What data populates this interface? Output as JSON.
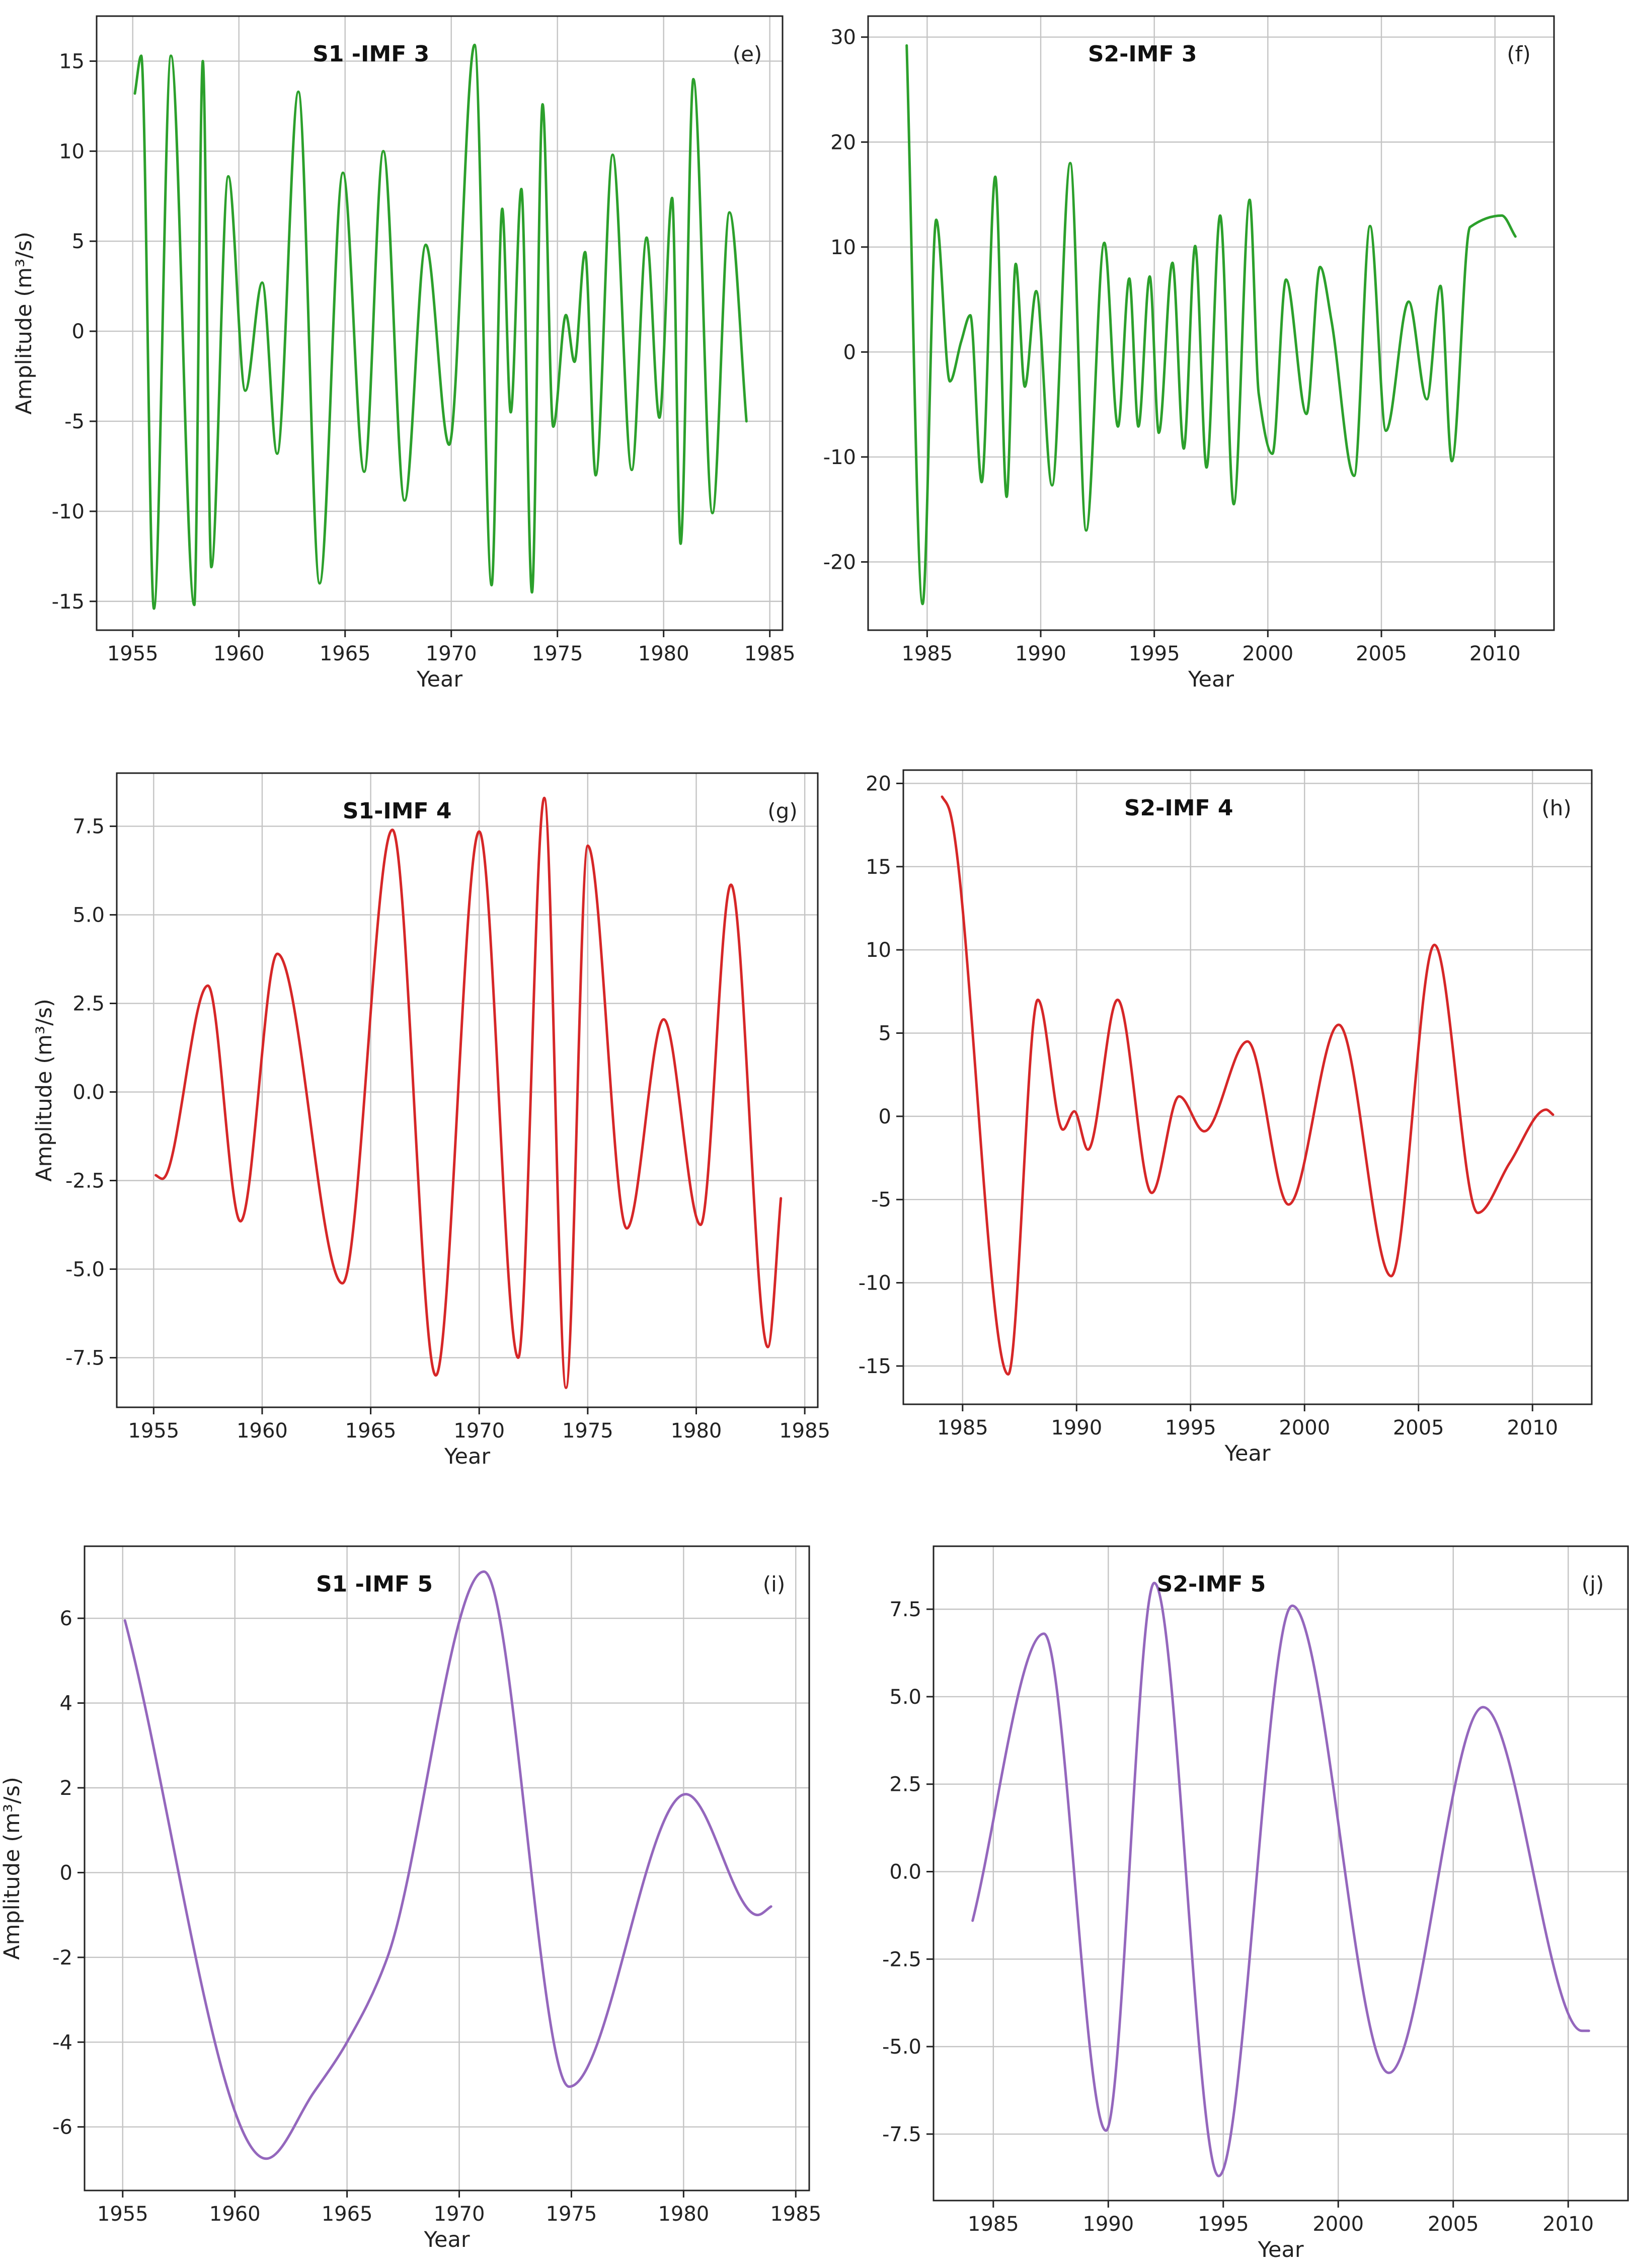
{
  "figure": {
    "xlabel": "Year",
    "ylabel": "Amplitude (m³/s)"
  },
  "colors": {
    "imf3": "#2ca02c",
    "imf4": "#d62728",
    "imf5": "#9467bd",
    "grid": "#c4c4c4",
    "axis": "#222222"
  },
  "chart_data": [
    {
      "type": "line",
      "panel": "e",
      "title": "S1 -IMF 3",
      "tag": "(e)",
      "xlabel": "Year",
      "ylabel": "Amplitude (m³/s)",
      "color": "#2ca02c",
      "xlim": [
        1953.3,
        1985.6
      ],
      "ylim": [
        -16.6,
        17.5
      ],
      "xticks": [
        1955,
        1960,
        1965,
        1970,
        1975,
        1980,
        1985
      ],
      "xtick_labels": [
        "1955",
        "1960",
        "1965",
        "1970",
        "1975",
        "1980",
        "1985"
      ],
      "yticks": [
        -15,
        -10,
        -5,
        0,
        5,
        10,
        15
      ],
      "ytick_labels": [
        "-15",
        "-10",
        "-5",
        "0",
        "5",
        "10",
        "15"
      ],
      "x": [
        1955.1,
        1955.4,
        1956.0,
        1956.8,
        1957.9,
        1958.3,
        1958.7,
        1959.5,
        1960.3,
        1961.1,
        1961.8,
        1962.8,
        1963.8,
        1964.9,
        1965.9,
        1966.8,
        1967.8,
        1968.8,
        1969.9,
        1971.1,
        1971.9,
        1972.4,
        1972.8,
        1973.3,
        1973.8,
        1974.3,
        1974.8,
        1975.4,
        1975.8,
        1976.3,
        1976.8,
        1977.6,
        1978.5,
        1979.2,
        1979.8,
        1980.4,
        1980.8,
        1981.4,
        1982.3,
        1983.1,
        1983.9
      ],
      "values": [
        13.2,
        15.3,
        -15.4,
        15.3,
        -15.2,
        15.0,
        -13.1,
        8.6,
        -3.3,
        2.7,
        -6.8,
        13.3,
        -14.0,
        8.8,
        -7.8,
        10.0,
        -9.4,
        4.8,
        -6.3,
        15.9,
        -14.1,
        6.8,
        -4.5,
        7.9,
        -14.5,
        12.6,
        -5.3,
        0.9,
        -1.7,
        4.4,
        -8.0,
        9.8,
        -7.7,
        5.2,
        -4.8,
        7.4,
        -11.8,
        14.0,
        -10.1,
        6.6,
        -5.0
      ]
    },
    {
      "type": "line",
      "panel": "f",
      "title": "S2-IMF 3",
      "tag": "(f)",
      "xlabel": "Year",
      "ylabel": "",
      "color": "#2ca02c",
      "xlim": [
        1982.4,
        2012.6
      ],
      "ylim": [
        -26.5,
        32.0
      ],
      "xticks": [
        1985,
        1990,
        1995,
        2000,
        2005,
        2010
      ],
      "xtick_labels": [
        "1985",
        "1990",
        "1995",
        "2000",
        "2005",
        "2010"
      ],
      "yticks": [
        -20,
        -10,
        0,
        10,
        20,
        30
      ],
      "ytick_labels": [
        "-20",
        "-10",
        "0",
        "10",
        "20",
        "30"
      ],
      "x": [
        1984.1,
        1984.8,
        1985.4,
        1986.0,
        1986.5,
        1986.9,
        1987.4,
        1988.0,
        1988.5,
        1988.9,
        1989.3,
        1989.8,
        1990.5,
        1991.3,
        1992.0,
        1992.8,
        1993.4,
        1993.9,
        1994.3,
        1994.8,
        1995.2,
        1995.8,
        1996.3,
        1996.8,
        1997.3,
        1997.9,
        1998.5,
        1999.2,
        1999.6,
        2000.2,
        2000.8,
        2001.7,
        2002.3,
        2002.8,
        2003.8,
        2004.5,
        2005.2,
        2006.2,
        2007.0,
        2007.6,
        2008.1,
        2008.9,
        2010.3,
        2010.9
      ],
      "values": [
        29.2,
        -24.0,
        12.6,
        -2.8,
        1.0,
        3.5,
        -12.4,
        16.7,
        -13.8,
        8.4,
        -3.3,
        5.8,
        -12.7,
        18.0,
        -17.0,
        10.4,
        -7.1,
        7.0,
        -7.1,
        7.2,
        -7.7,
        8.5,
        -9.2,
        10.1,
        -11.0,
        13.0,
        -14.5,
        14.5,
        -4.0,
        -9.7,
        6.9,
        -5.9,
        8.1,
        3.0,
        -11.8,
        12.0,
        -7.5,
        4.8,
        -4.5,
        6.3,
        -10.4,
        11.9,
        13.0,
        11.0
      ]
    },
    {
      "type": "line",
      "panel": "g",
      "title": "S1-IMF 4",
      "tag": "(g)",
      "xlabel": "Year",
      "ylabel": "Amplitude (m³/s)",
      "color": "#d62728",
      "xlim": [
        1953.3,
        1985.6
      ],
      "ylim": [
        -8.9,
        9.0
      ],
      "xticks": [
        1955,
        1960,
        1965,
        1970,
        1975,
        1980,
        1985
      ],
      "xtick_labels": [
        "1955",
        "1960",
        "1965",
        "1970",
        "1975",
        "1980",
        "1985"
      ],
      "yticks": [
        -7.5,
        -5.0,
        -2.5,
        0.0,
        2.5,
        5.0,
        7.5
      ],
      "ytick_labels": [
        "-7.5",
        "-5.0",
        "-2.5",
        "0.0",
        "2.5",
        "5.0",
        "7.5"
      ],
      "x": [
        1955.1,
        1955.4,
        1957.5,
        1959.0,
        1960.7,
        1963.7,
        1966.0,
        1968.0,
        1970.0,
        1971.8,
        1973.0,
        1974.0,
        1975.0,
        1976.8,
        1978.5,
        1980.2,
        1981.6,
        1983.3,
        1983.9
      ],
      "values": [
        -2.35,
        -2.45,
        3.0,
        -3.65,
        3.9,
        -5.4,
        7.4,
        -8.0,
        7.35,
        -7.5,
        8.3,
        -8.35,
        6.95,
        -3.85,
        2.05,
        -3.75,
        5.85,
        -7.2,
        -3.0
      ]
    },
    {
      "type": "line",
      "panel": "h",
      "title": "S2-IMF 4",
      "tag": "(h)",
      "xlabel": "Year",
      "ylabel": "",
      "color": "#d62728",
      "xlim": [
        1982.4,
        2012.6
      ],
      "ylim": [
        -17.3,
        20.8
      ],
      "xticks": [
        1985,
        1990,
        1995,
        2000,
        2005,
        2010
      ],
      "xtick_labels": [
        "1985",
        "1990",
        "1995",
        "2000",
        "2005",
        "2010"
      ],
      "yticks": [
        -15,
        -10,
        -5,
        0,
        5,
        10,
        15,
        20
      ],
      "ytick_labels": [
        "-15",
        "-10",
        "-5",
        "0",
        "5",
        "10",
        "15",
        "20"
      ],
      "x": [
        1984.1,
        1984.4,
        1987.0,
        1988.3,
        1989.4,
        1989.9,
        1990.5,
        1991.8,
        1993.3,
        1994.5,
        1995.6,
        1997.5,
        1999.3,
        2001.5,
        2003.8,
        2005.7,
        2007.6,
        2009.0,
        2010.6,
        2010.9
      ],
      "values": [
        19.2,
        18.5,
        -15.5,
        7.0,
        -0.8,
        0.3,
        -2.0,
        7.0,
        -4.6,
        1.2,
        -0.9,
        4.5,
        -5.3,
        5.5,
        -9.6,
        10.3,
        -5.8,
        -2.8,
        0.4,
        0.1
      ]
    },
    {
      "type": "line",
      "panel": "i",
      "title": "S1 -IMF 5",
      "tag": "(i)",
      "xlabel": "Year",
      "ylabel": "Amplitude (m³/s)",
      "color": "#9467bd",
      "xlim": [
        1953.3,
        1985.6
      ],
      "ylim": [
        -7.5,
        7.7
      ],
      "xticks": [
        1955,
        1960,
        1965,
        1970,
        1975,
        1980,
        1985
      ],
      "xtick_labels": [
        "1955",
        "1960",
        "1965",
        "1970",
        "1975",
        "1980",
        "1985"
      ],
      "yticks": [
        -6,
        -4,
        -2,
        0,
        2,
        4,
        6
      ],
      "ytick_labels": [
        "-6",
        "-4",
        "-2",
        "0",
        "2",
        "4",
        "6"
      ],
      "x": [
        1955.1,
        1961.4,
        1963.5,
        1965.0,
        1966.8,
        1971.1,
        1974.9,
        1980.1,
        1983.3,
        1983.9
      ],
      "values": [
        5.95,
        -6.75,
        -5.2,
        -4.0,
        -2.0,
        7.1,
        -5.05,
        1.85,
        -1.0,
        -0.8
      ]
    },
    {
      "type": "line",
      "panel": "j",
      "title": "S2-IMF 5",
      "tag": "(j)",
      "xlabel": "Year",
      "ylabel": "",
      "color": "#9467bd",
      "xlim": [
        1982.4,
        2012.6
      ],
      "ylim": [
        -9.4,
        9.3
      ],
      "xticks": [
        1985,
        1990,
        1995,
        2000,
        2005,
        2010
      ],
      "xtick_labels": [
        "1985",
        "1990",
        "1995",
        "2000",
        "2005",
        "2010"
      ],
      "yticks": [
        -7.5,
        -5.0,
        -2.5,
        0.0,
        2.5,
        5.0,
        7.5
      ],
      "ytick_labels": [
        "-7.5",
        "-5.0",
        "-2.5",
        "0.0",
        "2.5",
        "5.0",
        "7.5"
      ],
      "x": [
        1984.1,
        1987.2,
        1989.9,
        1992.0,
        1994.8,
        1998.0,
        2002.2,
        2006.3,
        2010.6,
        2010.9
      ],
      "values": [
        -1.4,
        6.8,
        -7.4,
        8.25,
        -8.7,
        7.6,
        -5.75,
        4.7,
        -4.55,
        -4.55
      ]
    }
  ]
}
